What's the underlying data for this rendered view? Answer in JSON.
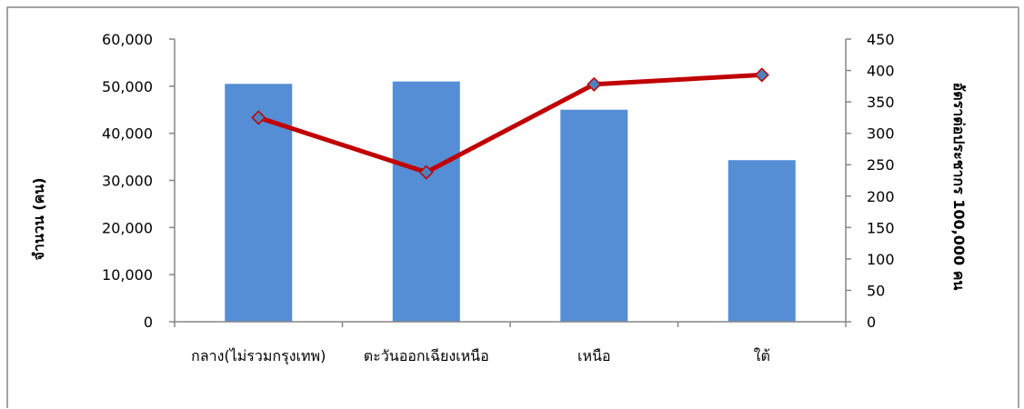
{
  "chart_data": {
    "type": "bar",
    "categories": [
      "กลาง(ไม่รวมกรุงเทพ)",
      "ตะวันออกเฉียงเหนือ",
      "เหนือ",
      "ใต้"
    ],
    "series": [
      {
        "type": "bar",
        "axis": "left",
        "values": [
          50500,
          51000,
          45000,
          34300
        ]
      },
      {
        "type": "line",
        "axis": "right",
        "values": [
          325,
          238,
          378,
          393
        ]
      }
    ],
    "ylabel": "จำนวน (คน)",
    "y2label": "อัตราต่อประชากร 100,000 คน",
    "ylim": [
      0,
      60000
    ],
    "y2lim": [
      0,
      450
    ],
    "yticks": [
      "0",
      "10,000",
      "20,000",
      "30,000",
      "40,000",
      "50,000",
      "60,000"
    ],
    "y2ticks": [
      "0",
      "50",
      "100",
      "150",
      "200",
      "250",
      "300",
      "350",
      "400",
      "450"
    ],
    "grid": false,
    "legend": "none",
    "colors": {
      "bar": "#558ED5",
      "line": "#C00000",
      "marker_fill": "#4F81BD",
      "marker_stroke": "#C00000",
      "axis": "#868686",
      "frame": "#868686"
    }
  }
}
